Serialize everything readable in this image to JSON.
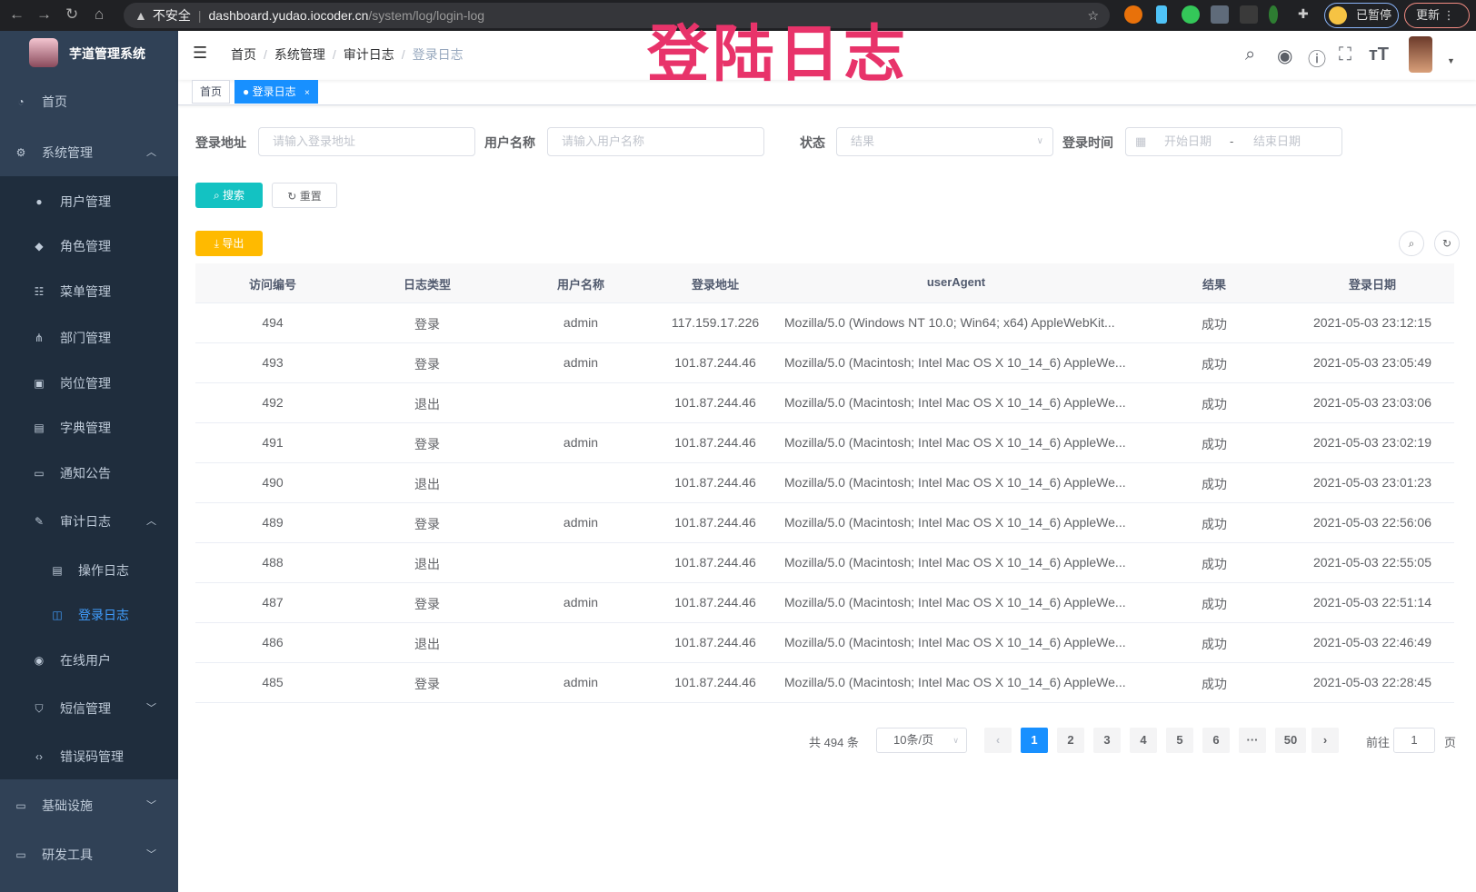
{
  "browser": {
    "insecure": "不安全",
    "url_host": "dashboard.yudao.iocoder.cn",
    "url_path": "/system/log/login-log",
    "paused": "已暂停",
    "update": "更新"
  },
  "overlay_title": "登陆日志",
  "sidebar": {
    "title": "芋道管理系统",
    "items": [
      {
        "label": "首页",
        "icon": "dashboard-icon"
      },
      {
        "label": "系统管理",
        "icon": "gear-icon",
        "expanded": true
      },
      {
        "label": "用户管理",
        "icon": "user-icon"
      },
      {
        "label": "角色管理",
        "icon": "peoples-icon"
      },
      {
        "label": "菜单管理",
        "icon": "tree-table-icon"
      },
      {
        "label": "部门管理",
        "icon": "tree-icon"
      },
      {
        "label": "岗位管理",
        "icon": "post-icon"
      },
      {
        "label": "字典管理",
        "icon": "dict-icon"
      },
      {
        "label": "通知公告",
        "icon": "message-icon"
      },
      {
        "label": "审计日志",
        "icon": "log-icon",
        "expanded": true
      },
      {
        "label": "操作日志",
        "icon": "form-icon"
      },
      {
        "label": "登录日志",
        "icon": "logininfor-icon",
        "active": true
      },
      {
        "label": "在线用户",
        "icon": "online-icon"
      },
      {
        "label": "短信管理",
        "icon": "validCode-icon"
      },
      {
        "label": "错误码管理",
        "icon": "code-icon"
      },
      {
        "label": "基础设施",
        "icon": "monitor-icon"
      },
      {
        "label": "研发工具",
        "icon": "tool-icon"
      }
    ]
  },
  "breadcrumb": [
    "首页",
    "系统管理",
    "审计日志",
    "登录日志"
  ],
  "tags": {
    "home": "首页",
    "current": "登录日志",
    "close": "×"
  },
  "filters": {
    "ip_label": "登录地址",
    "ip_placeholder": "请输入登录地址",
    "user_label": "用户名称",
    "user_placeholder": "请输入用户名称",
    "status_label": "状态",
    "status_placeholder": "结果",
    "time_label": "登录时间",
    "start_placeholder": "开始日期",
    "range_sep": "-",
    "end_placeholder": "结束日期"
  },
  "buttons": {
    "search": "搜索",
    "reset": "重置",
    "export": "导出"
  },
  "table": {
    "columns": [
      "访问编号",
      "日志类型",
      "用户名称",
      "登录地址",
      "userAgent",
      "结果",
      "登录日期"
    ],
    "rows": [
      [
        "494",
        "登录",
        "admin",
        "117.159.17.226",
        "Mozilla/5.0 (Windows NT 10.0; Win64; x64) AppleWebKit...",
        "成功",
        "2021-05-03 23:12:15"
      ],
      [
        "493",
        "登录",
        "admin",
        "101.87.244.46",
        "Mozilla/5.0 (Macintosh; Intel Mac OS X 10_14_6) AppleWe...",
        "成功",
        "2021-05-03 23:05:49"
      ],
      [
        "492",
        "退出",
        "",
        "101.87.244.46",
        "Mozilla/5.0 (Macintosh; Intel Mac OS X 10_14_6) AppleWe...",
        "成功",
        "2021-05-03 23:03:06"
      ],
      [
        "491",
        "登录",
        "admin",
        "101.87.244.46",
        "Mozilla/5.0 (Macintosh; Intel Mac OS X 10_14_6) AppleWe...",
        "成功",
        "2021-05-03 23:02:19"
      ],
      [
        "490",
        "退出",
        "",
        "101.87.244.46",
        "Mozilla/5.0 (Macintosh; Intel Mac OS X 10_14_6) AppleWe...",
        "成功",
        "2021-05-03 23:01:23"
      ],
      [
        "489",
        "登录",
        "admin",
        "101.87.244.46",
        "Mozilla/5.0 (Macintosh; Intel Mac OS X 10_14_6) AppleWe...",
        "成功",
        "2021-05-03 22:56:06"
      ],
      [
        "488",
        "退出",
        "",
        "101.87.244.46",
        "Mozilla/5.0 (Macintosh; Intel Mac OS X 10_14_6) AppleWe...",
        "成功",
        "2021-05-03 22:55:05"
      ],
      [
        "487",
        "登录",
        "admin",
        "101.87.244.46",
        "Mozilla/5.0 (Macintosh; Intel Mac OS X 10_14_6) AppleWe...",
        "成功",
        "2021-05-03 22:51:14"
      ],
      [
        "486",
        "退出",
        "",
        "101.87.244.46",
        "Mozilla/5.0 (Macintosh; Intel Mac OS X 10_14_6) AppleWe...",
        "成功",
        "2021-05-03 22:46:49"
      ],
      [
        "485",
        "登录",
        "admin",
        "101.87.244.46",
        "Mozilla/5.0 (Macintosh; Intel Mac OS X 10_14_6) AppleWe...",
        "成功",
        "2021-05-03 22:28:45"
      ]
    ]
  },
  "pagination": {
    "total": "共 494 条",
    "page_size": "10条/页",
    "pages": [
      "1",
      "2",
      "3",
      "4",
      "5",
      "6",
      "···",
      "50"
    ],
    "current": "1",
    "goto_label": "前往",
    "goto_value": "1",
    "goto_suffix": "页"
  },
  "colors": {
    "sidebar": "#304156",
    "primary": "#1890ff",
    "search_btn": "#13c2c2",
    "export_btn": "#ffba00",
    "overlay": "#e8336a"
  }
}
